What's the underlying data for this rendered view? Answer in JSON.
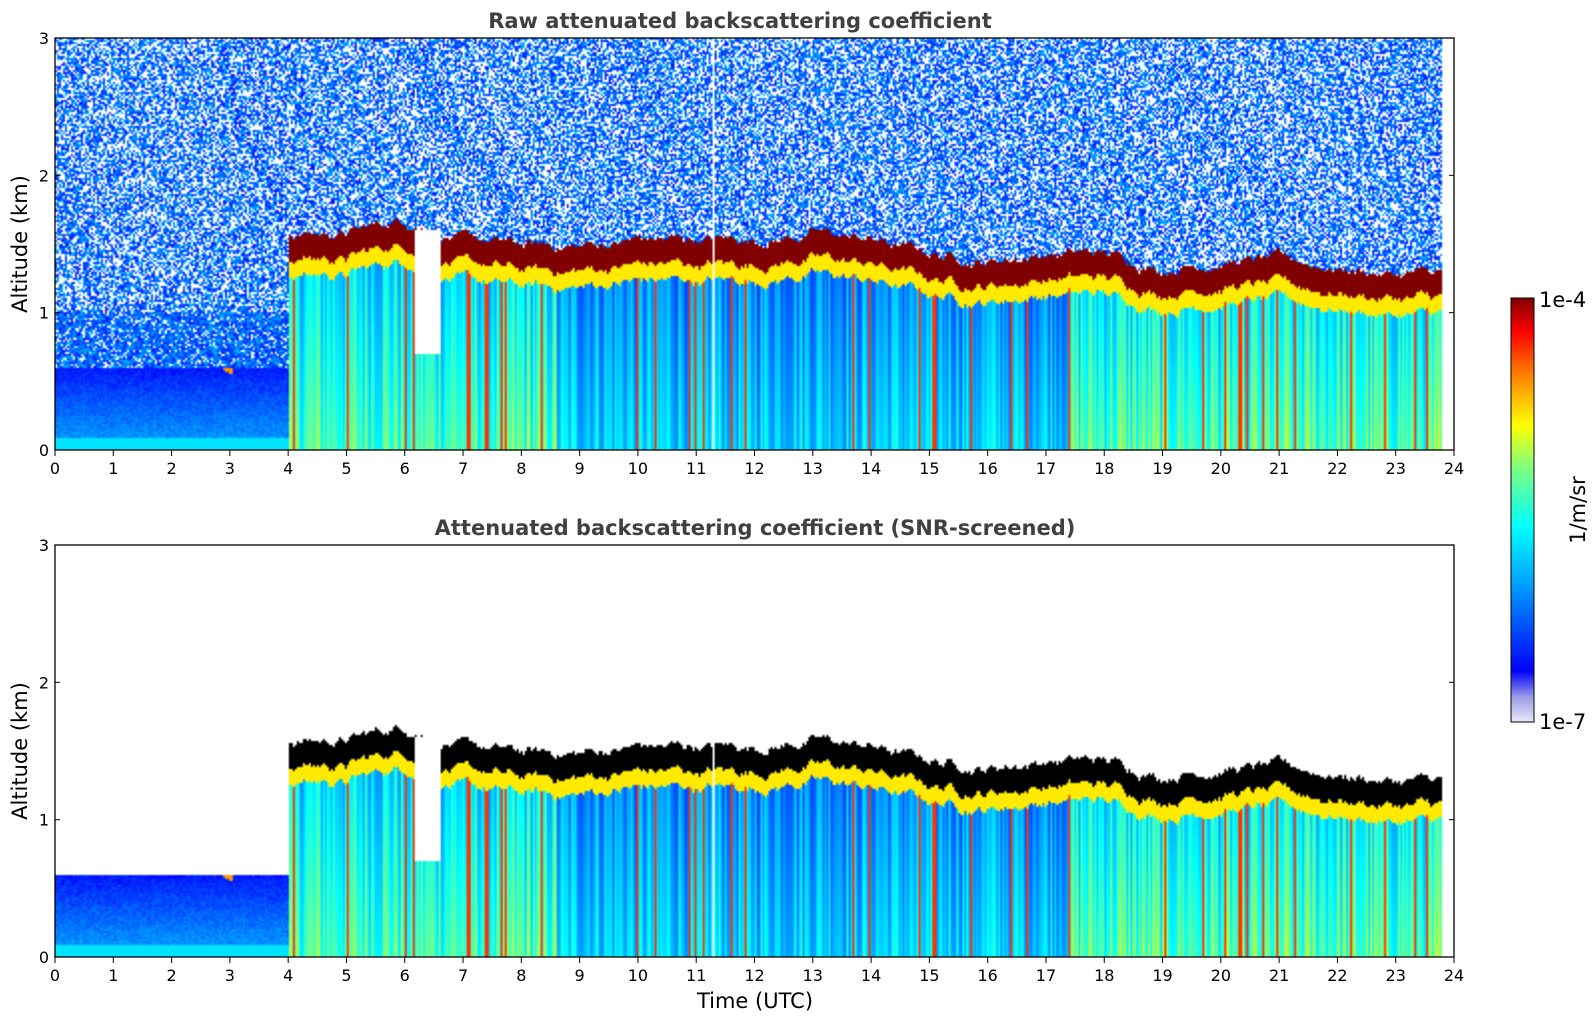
{
  "chart_data": [
    {
      "type": "heatmap",
      "title": "Raw attenuated backscattering coefficient",
      "xlabel": "",
      "ylabel": "Altitude (km)",
      "xlim": [
        0,
        24
      ],
      "ylim": [
        0,
        3
      ],
      "x_ticks": [
        "0",
        "1",
        "2",
        "3",
        "4",
        "5",
        "6",
        "7",
        "8",
        "9",
        "10",
        "11",
        "12",
        "13",
        "14",
        "15",
        "16",
        "17",
        "18",
        "19",
        "20",
        "21",
        "22",
        "23",
        "24"
      ],
      "y_ticks": [
        "0",
        "1",
        "2",
        "3"
      ],
      "colormap": "jet",
      "screened": false,
      "data_end_time": 23.8,
      "cloud_onset_time": 4.0,
      "data_gap_time": 11.3,
      "cloud_base_km": [
        [
          4.0,
          1.4
        ],
        [
          5.0,
          1.4
        ],
        [
          6.0,
          1.5
        ],
        [
          7.0,
          1.35
        ],
        [
          8.0,
          1.3
        ],
        [
          9.0,
          1.3
        ],
        [
          10.0,
          1.35
        ],
        [
          11.0,
          1.35
        ],
        [
          12.0,
          1.35
        ],
        [
          13.0,
          1.4
        ],
        [
          14.0,
          1.35
        ],
        [
          15.0,
          1.25
        ],
        [
          16.0,
          1.2
        ],
        [
          17.0,
          1.25
        ],
        [
          18.0,
          1.25
        ],
        [
          19.0,
          1.15
        ],
        [
          20.0,
          1.2
        ],
        [
          21.0,
          1.2
        ],
        [
          22.0,
          1.15
        ],
        [
          23.0,
          1.1
        ],
        [
          23.8,
          1.1
        ]
      ]
    },
    {
      "type": "heatmap",
      "title": "Attenuated backscattering coefficient (SNR-screened)",
      "xlabel": "Time (UTC)",
      "ylabel": "Altitude (km)",
      "xlim": [
        0,
        24
      ],
      "ylim": [
        0,
        3
      ],
      "x_ticks": [
        "0",
        "1",
        "2",
        "3",
        "4",
        "5",
        "6",
        "7",
        "8",
        "9",
        "10",
        "11",
        "12",
        "13",
        "14",
        "15",
        "16",
        "17",
        "18",
        "19",
        "20",
        "21",
        "22",
        "23",
        "24"
      ],
      "y_ticks": [
        "0",
        "1",
        "2",
        "3"
      ],
      "colormap": "jet",
      "screened": true,
      "saturated_color": "#000000",
      "data_end_time": 23.8,
      "cloud_onset_time": 4.0,
      "data_gap_time": 11.3
    }
  ],
  "colorbar": {
    "label": "1/m/sr",
    "max_label": "1e-4",
    "min_label": "1e-7",
    "range": [
      1e-07,
      0.0001
    ],
    "scale": "log",
    "colors": [
      "#e8e8f8",
      "#0000ff",
      "#00ffff",
      "#ffff00",
      "#ff0000",
      "#800000"
    ]
  }
}
